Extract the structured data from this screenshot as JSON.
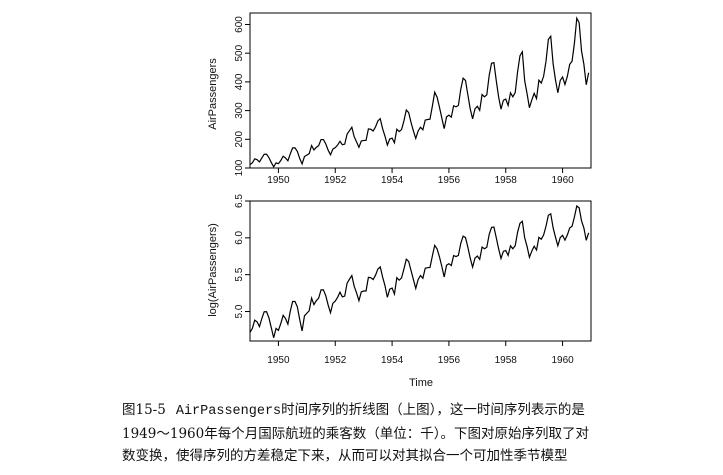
{
  "chart_data": [
    {
      "type": "line",
      "ylabel": "AirPassengers",
      "xlabel": "",
      "xlim": [
        1949.0,
        1961.0
      ],
      "ylim": [
        100,
        640
      ],
      "xticks": [
        1950,
        1952,
        1954,
        1956,
        1958,
        1960
      ],
      "yticks": [
        100,
        200,
        300,
        400,
        500,
        600
      ],
      "x_start": 1949.0,
      "x_step": 0.0833333,
      "series": [
        {
          "values": [
            112,
            118,
            132,
            129,
            121,
            135,
            148,
            148,
            136,
            119,
            104,
            118,
            115,
            126,
            141,
            135,
            125,
            149,
            170,
            170,
            158,
            133,
            114,
            140,
            145,
            150,
            178,
            163,
            172,
            178,
            199,
            199,
            184,
            162,
            146,
            166,
            171,
            180,
            193,
            181,
            183,
            218,
            230,
            242,
            209,
            191,
            172,
            194,
            196,
            196,
            236,
            235,
            229,
            243,
            264,
            272,
            237,
            211,
            180,
            201,
            204,
            188,
            235,
            227,
            234,
            264,
            302,
            293,
            259,
            229,
            203,
            229,
            242,
            233,
            267,
            269,
            270,
            315,
            364,
            347,
            312,
            274,
            237,
            278,
            284,
            277,
            317,
            313,
            318,
            374,
            413,
            405,
            355,
            306,
            271,
            306,
            315,
            301,
            356,
            348,
            355,
            422,
            465,
            467,
            404,
            347,
            305,
            336,
            340,
            318,
            362,
            348,
            363,
            435,
            491,
            505,
            404,
            359,
            310,
            337,
            360,
            342,
            406,
            396,
            420,
            472,
            548,
            559,
            463,
            407,
            362,
            405,
            417,
            391,
            419,
            461,
            472,
            535,
            622,
            606,
            508,
            461,
            390,
            432
          ]
        }
      ]
    },
    {
      "type": "line",
      "ylabel": "log(AirPassengers)",
      "xlabel": "Time",
      "transform": "log",
      "xlim": [
        1949.0,
        1961.0
      ],
      "ylim": [
        4.6,
        6.5
      ],
      "xticks": [
        1950,
        1952,
        1954,
        1956,
        1958,
        1960
      ],
      "yticks": [
        "5.0",
        "5.5",
        "6.0",
        "6.5"
      ],
      "x_start": 1949.0,
      "x_step": 0.0833333
    }
  ],
  "caption": {
    "figure_number": "图15-5",
    "code_term": "AirPassengers",
    "text_line1": "时间序列的折线图（上图），这一时间序列表示的是",
    "text_line2": "1949～1960年每个月国际航班的乘客数（单位：千）。下图对原始序列取了对",
    "text_line3": "数变换，使得序列的方差稳定下来，从而可以对其拟合一个可加性季节模型"
  }
}
